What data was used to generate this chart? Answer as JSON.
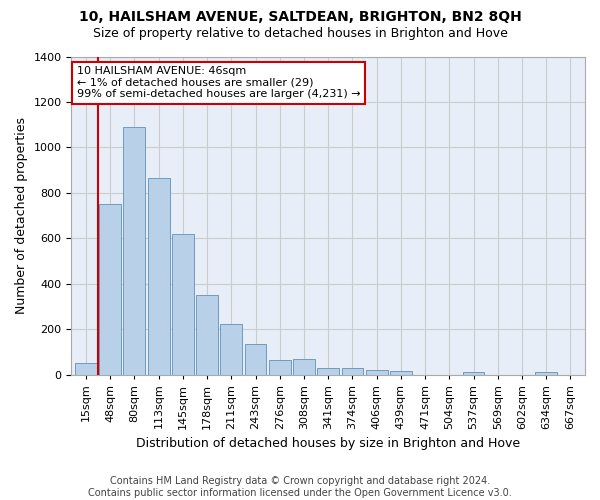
{
  "title": "10, HAILSHAM AVENUE, SALTDEAN, BRIGHTON, BN2 8QH",
  "subtitle": "Size of property relative to detached houses in Brighton and Hove",
  "xlabel": "Distribution of detached houses by size in Brighton and Hove",
  "ylabel": "Number of detached properties",
  "footer1": "Contains HM Land Registry data © Crown copyright and database right 2024.",
  "footer2": "Contains public sector information licensed under the Open Government Licence v3.0.",
  "categories": [
    "15sqm",
    "48sqm",
    "80sqm",
    "113sqm",
    "145sqm",
    "178sqm",
    "211sqm",
    "243sqm",
    "276sqm",
    "308sqm",
    "341sqm",
    "374sqm",
    "406sqm",
    "439sqm",
    "471sqm",
    "504sqm",
    "537sqm",
    "569sqm",
    "602sqm",
    "634sqm",
    "667sqm"
  ],
  "values": [
    50,
    750,
    1090,
    865,
    620,
    350,
    222,
    135,
    63,
    70,
    30,
    30,
    22,
    14,
    0,
    0,
    12,
    0,
    0,
    12,
    0
  ],
  "bar_color": "#b8d0e8",
  "bar_edge_color": "#6090b8",
  "grid_color": "#cccccc",
  "bg_color": "#e8eef8",
  "annotation_line1": "10 HAILSHAM AVENUE: 46sqm",
  "annotation_line2": "← 1% of detached houses are smaller (29)",
  "annotation_line3": "99% of semi-detached houses are larger (4,231) →",
  "annotation_box_color": "#cc0000",
  "vline_x": 0.5,
  "ylim": [
    0,
    1400
  ],
  "yticks": [
    0,
    200,
    400,
    600,
    800,
    1000,
    1200,
    1400
  ],
  "title_fontsize": 10,
  "subtitle_fontsize": 9,
  "ylabel_fontsize": 9,
  "xlabel_fontsize": 9,
  "tick_fontsize": 8,
  "annotation_fontsize": 8,
  "footer_fontsize": 7
}
